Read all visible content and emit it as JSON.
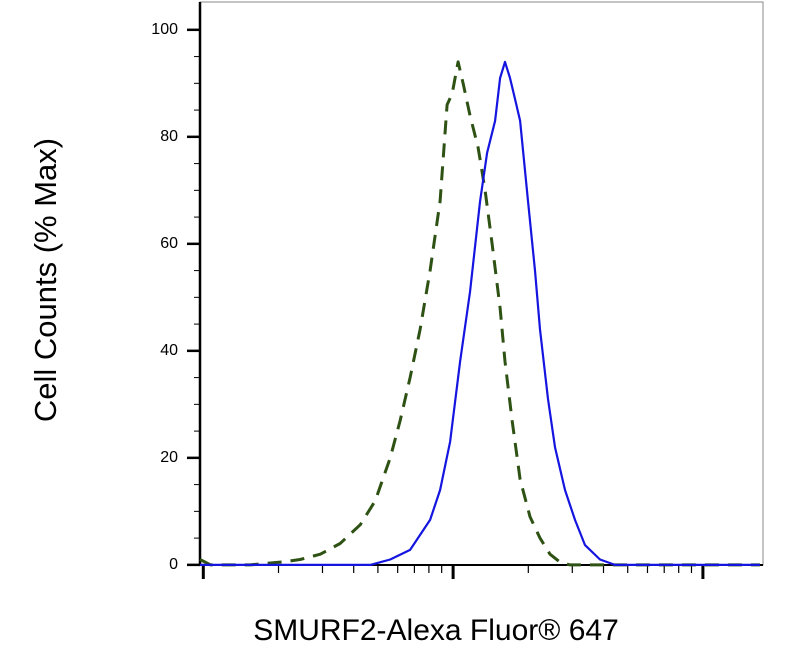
{
  "chart_data": {
    "type": "line",
    "x_label": "SMURF2-Alexa Fluor® 647",
    "y_label": "Cell Counts (% Max)",
    "x_scale": "log",
    "xlim": [
      97,
      17400
    ],
    "xticks": [
      100,
      1000,
      10000
    ],
    "x_minor_ticks": [
      200,
      300,
      400,
      500,
      600,
      700,
      800,
      900,
      2000,
      3000,
      4000,
      5000,
      6000,
      7000,
      8000,
      9000
    ],
    "ylim": [
      -0.4,
      105.2
    ],
    "yticks": [
      0,
      20,
      40,
      60,
      80,
      100
    ],
    "y_minor_ticks": [
      5,
      10,
      15,
      25,
      30,
      35,
      45,
      50,
      55,
      65,
      70,
      75,
      85,
      90,
      95
    ],
    "series": [
      {
        "color": "#2e5213",
        "dash": true,
        "x": [
          97,
          107,
          154,
          213,
          244,
          294,
          353,
          425,
          488,
          560,
          614,
          673,
          738,
          809,
          887,
          946,
          991,
          1047,
          1096,
          1169,
          1259,
          1343,
          1432,
          1542,
          1614,
          1722,
          1854,
          2032,
          2228,
          2443,
          2679,
          2938,
          16904
        ],
        "values": [
          1,
          0,
          0,
          0.6,
          1,
          2,
          4,
          7.5,
          12,
          20,
          27,
          35,
          44,
          55,
          68,
          86,
          88,
          94,
          90,
          84,
          78,
          70,
          60,
          48,
          38,
          27,
          16,
          9,
          5,
          2,
          0.5,
          0,
          0
        ]
      },
      {
        "color": "#1515e0",
        "dash": false,
        "x": [
          97,
          466,
          560,
          673,
          809,
          887,
          973,
          1067,
          1169,
          1282,
          1368,
          1472,
          1542,
          1614,
          1690,
          1770,
          1854,
          1995,
          2128,
          2228,
          2399,
          2559,
          2805,
          3076,
          3373,
          3873,
          4446,
          16904
        ],
        "values": [
          0,
          0,
          1,
          2.8,
          8.4,
          14,
          23,
          38,
          51,
          68,
          77,
          83,
          91,
          94,
          91,
          87,
          83,
          68,
          55,
          44,
          31,
          22,
          14,
          8.4,
          3.7,
          1,
          0,
          0
        ]
      }
    ]
  }
}
